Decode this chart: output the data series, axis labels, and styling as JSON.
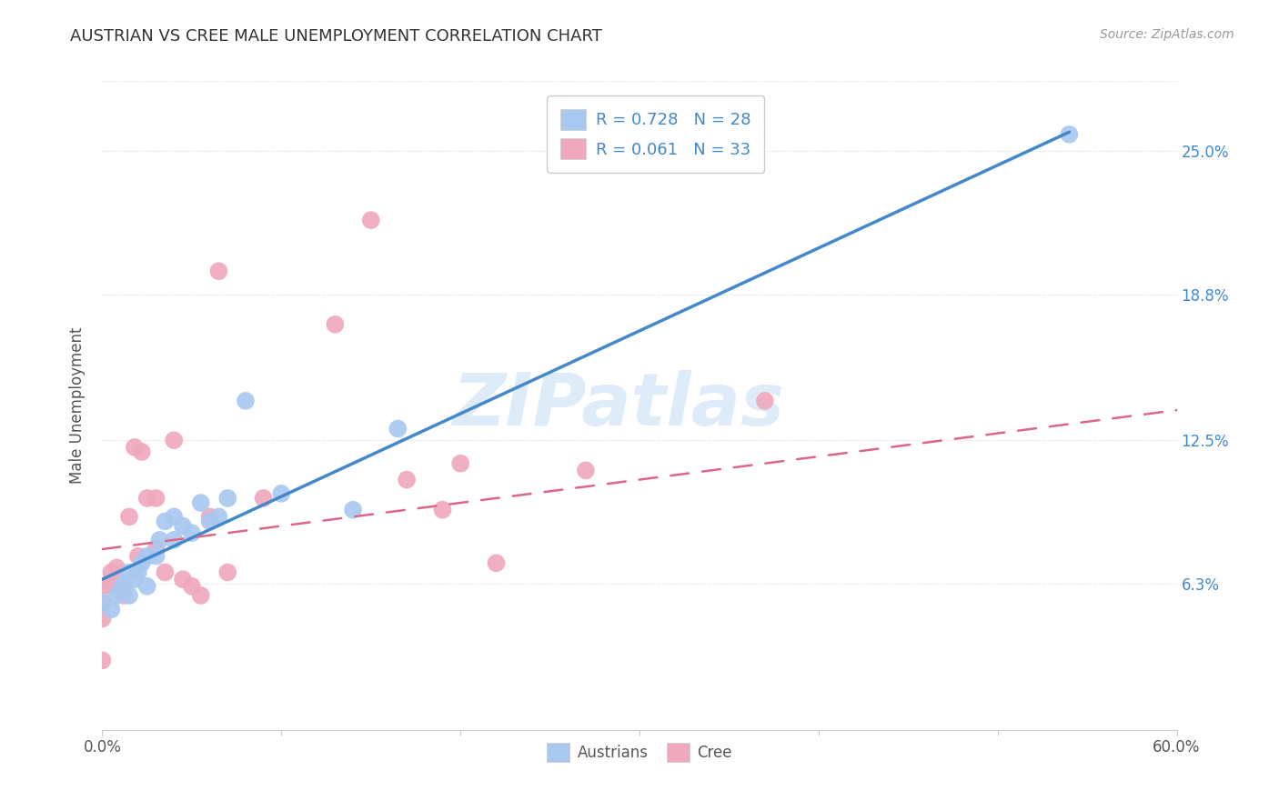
{
  "title": "AUSTRIAN VS CREE MALE UNEMPLOYMENT CORRELATION CHART",
  "source": "Source: ZipAtlas.com",
  "ylabel": "Male Unemployment",
  "xlim": [
    0,
    0.6
  ],
  "ylim": [
    0.0,
    0.28
  ],
  "yticks": [
    0.063,
    0.125,
    0.188,
    0.25
  ],
  "ytick_labels": [
    "6.3%",
    "12.5%",
    "18.8%",
    "25.0%"
  ],
  "xtick_positions": [
    0.0,
    0.1,
    0.2,
    0.3,
    0.4,
    0.5,
    0.6
  ],
  "xtick_labels": [
    "0.0%",
    "",
    "",
    "",
    "",
    "",
    "60.0%"
  ],
  "background_color": "#ffffff",
  "grid_color": "#d8d8d8",
  "austrians_color": "#a8c8f0",
  "cree_color": "#f0a8bc",
  "austrians_line_color": "#4488cc",
  "cree_line_color": "#dd6688",
  "legend_text_color": "#4488cc",
  "watermark": "ZIPatlas",
  "austrians_x": [
    0.0,
    0.005,
    0.008,
    0.01,
    0.012,
    0.015,
    0.015,
    0.018,
    0.02,
    0.022,
    0.025,
    0.025,
    0.03,
    0.032,
    0.035,
    0.04,
    0.04,
    0.045,
    0.05,
    0.055,
    0.06,
    0.065,
    0.07,
    0.08,
    0.1,
    0.14,
    0.165,
    0.54
  ],
  "austrians_y": [
    0.055,
    0.052,
    0.058,
    0.06,
    0.063,
    0.058,
    0.068,
    0.065,
    0.068,
    0.072,
    0.062,
    0.075,
    0.075,
    0.082,
    0.09,
    0.082,
    0.092,
    0.088,
    0.085,
    0.098,
    0.09,
    0.092,
    0.1,
    0.142,
    0.102,
    0.095,
    0.13,
    0.257
  ],
  "cree_x": [
    0.0,
    0.0,
    0.0,
    0.0,
    0.005,
    0.005,
    0.008,
    0.01,
    0.012,
    0.015,
    0.018,
    0.02,
    0.022,
    0.025,
    0.03,
    0.03,
    0.035,
    0.04,
    0.045,
    0.05,
    0.055,
    0.06,
    0.065,
    0.07,
    0.09,
    0.13,
    0.15,
    0.17,
    0.19,
    0.2,
    0.22,
    0.27,
    0.37
  ],
  "cree_y": [
    0.062,
    0.055,
    0.048,
    0.03,
    0.068,
    0.062,
    0.07,
    0.062,
    0.058,
    0.092,
    0.122,
    0.075,
    0.12,
    0.1,
    0.1,
    0.078,
    0.068,
    0.125,
    0.065,
    0.062,
    0.058,
    0.092,
    0.198,
    0.068,
    0.1,
    0.175,
    0.22,
    0.108,
    0.095,
    0.115,
    0.072,
    0.112,
    0.142
  ],
  "aus_line_x": [
    0.0,
    0.54
  ],
  "aus_line_y": [
    0.065,
    0.258
  ],
  "cree_line_x": [
    0.0,
    0.6
  ],
  "cree_line_y": [
    0.078,
    0.138
  ]
}
